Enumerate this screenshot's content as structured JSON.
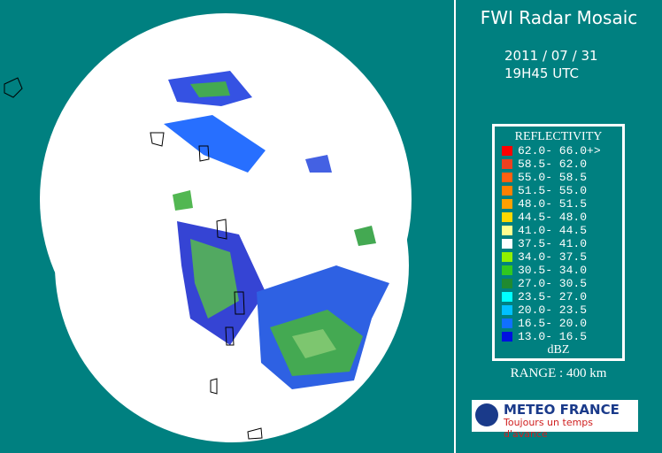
{
  "header": {
    "title": "FWI Radar Mosaic",
    "date": "2011 / 07 / 31",
    "time": "19H45 UTC"
  },
  "legend": {
    "title": "REFLECTIVITY",
    "unit": "dBZ",
    "items": [
      {
        "label": "62.0- 66.0+>",
        "color": "#ff0000"
      },
      {
        "label": "58.5- 62.0",
        "color": "#f04020"
      },
      {
        "label": "55.0- 58.5",
        "color": "#ff6010"
      },
      {
        "label": "51.5- 55.0",
        "color": "#ff8000"
      },
      {
        "label": "48.0- 51.5",
        "color": "#ffa000"
      },
      {
        "label": "44.5- 48.0",
        "color": "#ffd800"
      },
      {
        "label": "41.0- 44.5",
        "color": "#ffff90"
      },
      {
        "label": "37.5- 41.0",
        "color": "#ffffff"
      },
      {
        "label": "34.0- 37.5",
        "color": "#90f000"
      },
      {
        "label": "30.5- 34.0",
        "color": "#30c820"
      },
      {
        "label": "27.0- 30.5",
        "color": "#208a30"
      },
      {
        "label": "23.5- 27.0",
        "color": "#00ffff"
      },
      {
        "label": "20.0- 23.5",
        "color": "#00c0ff"
      },
      {
        "label": "16.5- 20.0",
        "color": "#1070ff"
      },
      {
        "label": "13.0- 16.5",
        "color": "#0010e0"
      }
    ]
  },
  "range": "RANGE : 400 km",
  "logo": {
    "name": "METEO FRANCE",
    "slogan": "Toujours un temps d'avance"
  }
}
